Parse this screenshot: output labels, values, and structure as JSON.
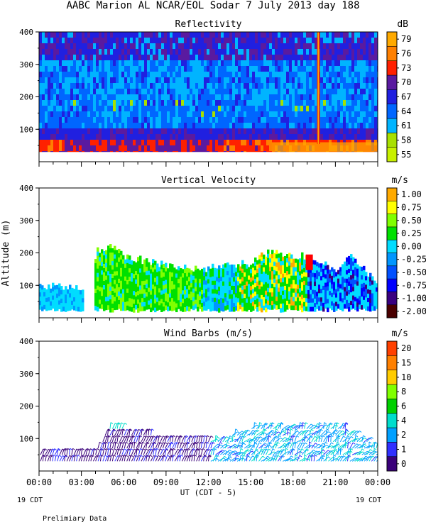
{
  "title": "AABC Marion AL NCAR/EOL Sodar    7 July 2013 day 188",
  "footer": {
    "left_date": "19 CDT",
    "right_date": "19 CDT",
    "note": "Prelimiary Data",
    "xlabel": "UT  (CDT - 5)"
  },
  "colors": {
    "refl": [
      "#c8f000",
      "#a8e000",
      "#00b4ff",
      "#0066ff",
      "#2020e0",
      "#5a1aa0",
      "#ff2000",
      "#ff8000",
      "#ffaa00",
      "#4a0000"
    ],
    "vel": [
      "#4a0000",
      "#3a0080",
      "#0000ff",
      "#0050ff",
      "#0096ff",
      "#00dcff",
      "#00e000",
      "#80ff00",
      "#ffff00",
      "#ffaa00",
      "#ff5500",
      "#ff0000"
    ],
    "wind": [
      "#3a007a",
      "#3030ff",
      "#00a0ff",
      "#00ddcc",
      "#00d000",
      "#80ff00",
      "#ffcc00",
      "#ff8000",
      "#ff4000",
      "#ff0000"
    ]
  },
  "chart_data": [
    {
      "type": "heatmap",
      "title": "Reflectivity",
      "unit": "dB",
      "ylim": [
        0,
        400
      ],
      "yticks": [
        "100",
        "200",
        "300",
        "400"
      ],
      "xlim": [
        "00:00",
        "24:00"
      ],
      "colorbar": [
        "55",
        "58",
        "61",
        "64",
        "67",
        "70",
        "73",
        "76",
        "79"
      ],
      "layers": [
        {
          "from_alt": 30,
          "to_alt": 60,
          "value_dB": 70
        },
        {
          "from_alt": 60,
          "to_alt": 120,
          "value_dB": 67
        },
        {
          "from_alt": 120,
          "to_alt": 180,
          "value_dB": 64
        },
        {
          "from_alt": 180,
          "to_alt": 250,
          "value_dB": 61
        },
        {
          "from_alt": 250,
          "to_alt": 400,
          "value_dB": 64
        }
      ]
    },
    {
      "type": "heatmap",
      "title": "Vertical Velocity",
      "unit": "m/s",
      "ylabel": "Altitude (m)",
      "ylim": [
        0,
        400
      ],
      "yticks": [
        "100",
        "200",
        "300",
        "400"
      ],
      "colorbar": [
        "1.00",
        "0.75",
        "0.50",
        "0.25",
        "0.00",
        "-0.25",
        "-0.50",
        "-0.75",
        "-1.00",
        "-2.00"
      ],
      "top_altitude_m": [
        {
          "x": "00:00",
          "y": 100
        },
        {
          "x": "01:30",
          "y": 100
        },
        {
          "x": "03:30",
          "y": 80
        },
        {
          "x": "04:00",
          "y": 210
        },
        {
          "x": "05:00",
          "y": 220
        },
        {
          "x": "06:00",
          "y": 190
        },
        {
          "x": "09:00",
          "y": 160
        },
        {
          "x": "11:30",
          "y": 150
        },
        {
          "x": "15:00",
          "y": 170
        },
        {
          "x": "16:00",
          "y": 200
        },
        {
          "x": "19:00",
          "y": 190
        },
        {
          "x": "21:00",
          "y": 150
        },
        {
          "x": "22:00",
          "y": 200
        },
        {
          "x": "24:00",
          "y": 100
        }
      ]
    },
    {
      "type": "scatter",
      "title": "Wind Barbs (m/s)",
      "unit": "m/s",
      "ylim": [
        0,
        400
      ],
      "yticks": [
        "100",
        "200",
        "300",
        "400"
      ],
      "colorbar": [
        "0",
        "1",
        "2",
        "4",
        "6",
        "8",
        "10",
        "15",
        "20"
      ],
      "xticks": [
        "00:00",
        "03:00",
        "06:00",
        "09:00",
        "12:00",
        "15:00",
        "18:00",
        "21:00",
        "00:00"
      ],
      "top_altitude_m": [
        {
          "x": "00:00",
          "y": 60
        },
        {
          "x": "04:00",
          "y": 60
        },
        {
          "x": "05:00",
          "y": 140
        },
        {
          "x": "06:00",
          "y": 130
        },
        {
          "x": "09:00",
          "y": 100
        },
        {
          "x": "13:00",
          "y": 100
        },
        {
          "x": "15:00",
          "y": 130
        },
        {
          "x": "18:00",
          "y": 140
        },
        {
          "x": "21:00",
          "y": 150
        },
        {
          "x": "24:00",
          "y": 70
        }
      ]
    }
  ]
}
